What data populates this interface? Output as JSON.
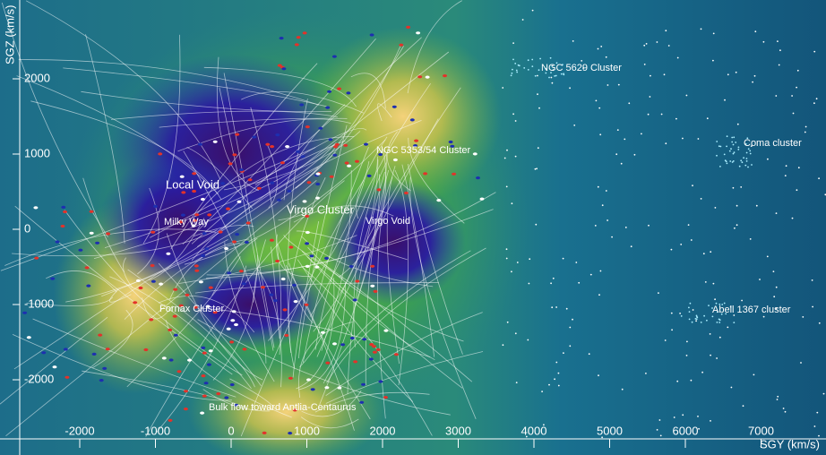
{
  "x_axis": {
    "label": "SGY (km/s)",
    "ticks": [
      -2000,
      -1000,
      0,
      1000,
      2000,
      3000,
      4000,
      5000,
      6000,
      7000
    ]
  },
  "y_axis": {
    "label": "SGZ (km/s)",
    "ticks": [
      2000,
      1000,
      0,
      -1000,
      -2000
    ]
  },
  "annotations": [
    "NGC 5629 Cluster",
    "NGC 5353/54 Cluster",
    "Coma cluster",
    "Local Void",
    "Milky Way",
    "Virgo Cluster",
    "Virgo Void",
    "Fornax Cluster",
    "Abell 1367 cluster",
    "Bulk flow toward Antlia-Centaurus"
  ]
}
